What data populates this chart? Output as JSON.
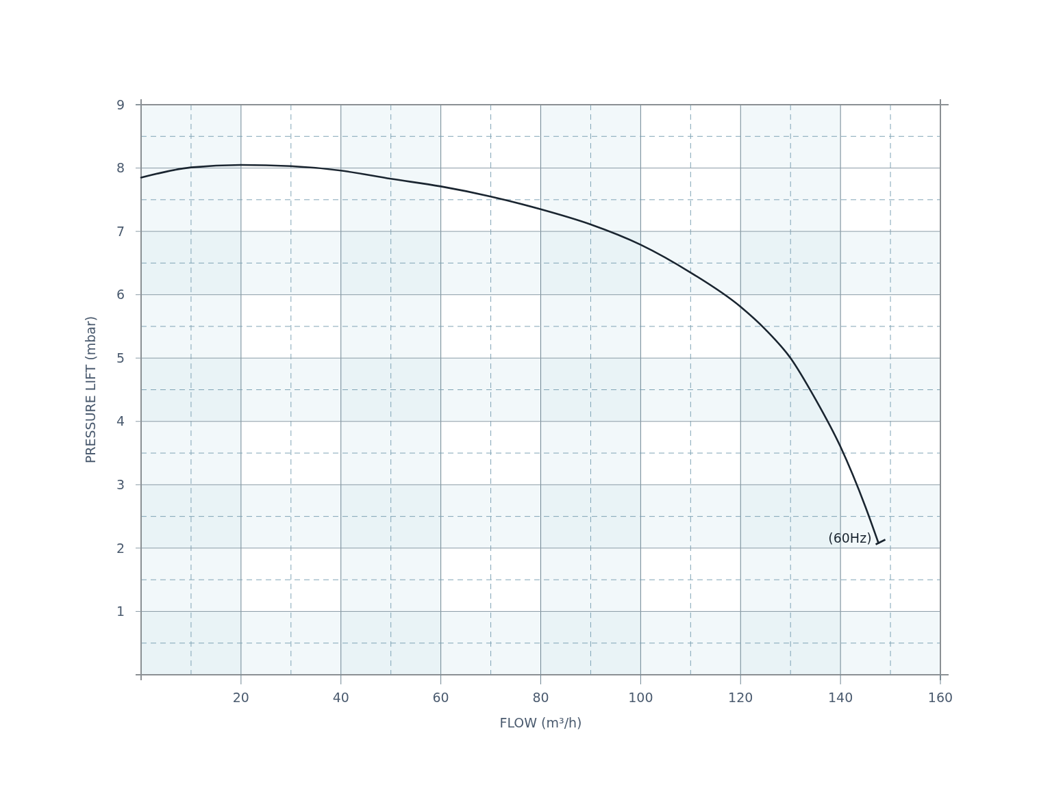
{
  "chart_data": {
    "type": "line",
    "xlabel": "FLOW (m³/h)",
    "ylabel": "PRESSURE LIFT (mbar)",
    "xlim": [
      0,
      160
    ],
    "ylim": [
      0,
      9
    ],
    "xticks": [
      {
        "value": 0,
        "label": null
      },
      {
        "value": 10,
        "label": null
      },
      20,
      {
        "value": 30,
        "label": null
      },
      40,
      {
        "value": 50,
        "label": null
      },
      60,
      {
        "value": 70,
        "label": null
      },
      80,
      {
        "value": 90,
        "label": null
      },
      100,
      {
        "value": 110,
        "label": null
      },
      120,
      {
        "value": 130,
        "label": null
      },
      140,
      {
        "value": 150,
        "label": null
      },
      160
    ],
    "yticks": [
      {
        "value": 0,
        "label": null
      },
      {
        "value": 0.5,
        "label": null
      },
      1,
      {
        "value": 1.5,
        "label": null
      },
      2,
      {
        "value": 2.5,
        "label": null
      },
      3,
      {
        "value": 3.5,
        "label": null
      },
      4,
      {
        "value": 4.5,
        "label": null
      },
      5,
      {
        "value": 5.5,
        "label": null
      },
      6,
      {
        "value": 6.5,
        "label": null
      },
      7,
      {
        "value": 7.5,
        "label": null
      },
      8,
      {
        "value": 8.5,
        "label": null
      },
      9
    ],
    "grid": true,
    "marker": "none",
    "line_style": "solid",
    "series": [
      {
        "color": "#1a2530",
        "x": [
          0,
          10,
          20,
          30,
          40,
          50,
          60,
          70,
          80,
          90,
          100,
          110,
          120,
          125,
          130,
          135,
          140,
          145,
          147.6
        ],
        "values": [
          7.85,
          8.01,
          8.05,
          8.03,
          7.96,
          7.83,
          7.71,
          7.55,
          7.35,
          7.11,
          6.79,
          6.35,
          5.81,
          5.45,
          5.0,
          4.35,
          3.6,
          2.65,
          2.08
        ]
      }
    ],
    "bands": [
      {
        "axis": "x",
        "from": 0,
        "to": 20,
        "color": "#d3e7f0"
      },
      {
        "axis": "x",
        "from": 40,
        "to": 60,
        "color": "#d3e7f0"
      },
      {
        "axis": "x",
        "from": 80,
        "to": 100,
        "color": "#d3e7f0"
      },
      {
        "axis": "x",
        "from": 120,
        "to": 140,
        "color": "#d3e7f0"
      },
      {
        "axis": "y",
        "from": 0,
        "to": 1,
        "color": "#d3e7f0"
      },
      {
        "axis": "y",
        "from": 2,
        "to": 3,
        "color": "#d3e7f0"
      },
      {
        "axis": "y",
        "from": 4,
        "to": 5,
        "color": "#d3e7f0"
      },
      {
        "axis": "y",
        "from": 6,
        "to": 7,
        "color": "#d3e7f0"
      }
    ],
    "annotations": [
      {
        "text": "(60Hz)",
        "x": 147.6,
        "y": 2.08
      }
    ]
  }
}
